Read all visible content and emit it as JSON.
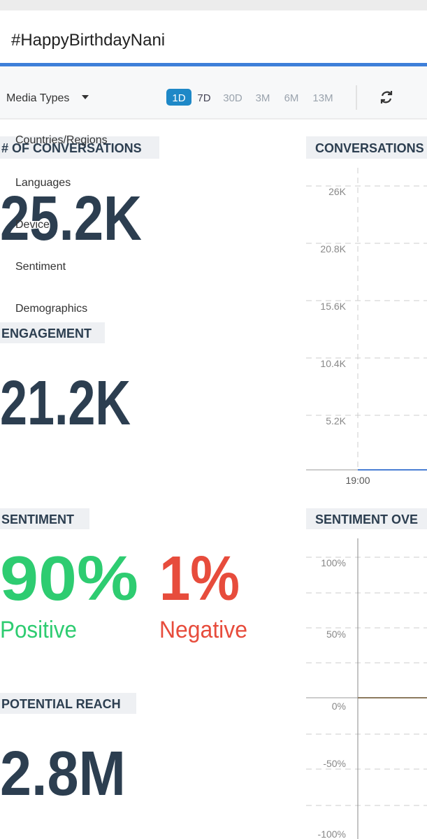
{
  "header": {
    "title": "#HappyBirthdayNani"
  },
  "toolbar": {
    "media_types": "Media Types",
    "ranges": [
      "1D",
      "7D",
      "30D",
      "3M",
      "6M",
      "13M"
    ]
  },
  "dropdown": {
    "items": [
      "Countries/Regions",
      "Languages",
      "Device",
      "Sentiment",
      "Demographics"
    ]
  },
  "panels": {
    "conversations": {
      "label": "# OF CONVERSATIONS",
      "value": "25.2K"
    },
    "engagement": {
      "label": "ENGAGEMENT",
      "value": "21.2K"
    },
    "sentiment": {
      "label": "SENTIMENT",
      "positive": "90%",
      "positive_label": "Positive",
      "negative": "1%",
      "negative_label": "Negative"
    },
    "reach": {
      "label": "POTENTIAL REACH",
      "value": "2.8M"
    }
  },
  "conversations_chart": {
    "title": "CONVERSATIONS",
    "yticks": [
      "26K",
      "20.8K",
      "15.6K",
      "10.4K",
      "5.2K"
    ],
    "xticks": [
      "19:00"
    ]
  },
  "sentiment_chart": {
    "title": "SENTIMENT OVE",
    "yticks": [
      "100%",
      "50%",
      "0%",
      "-50%",
      "-100%"
    ]
  }
}
